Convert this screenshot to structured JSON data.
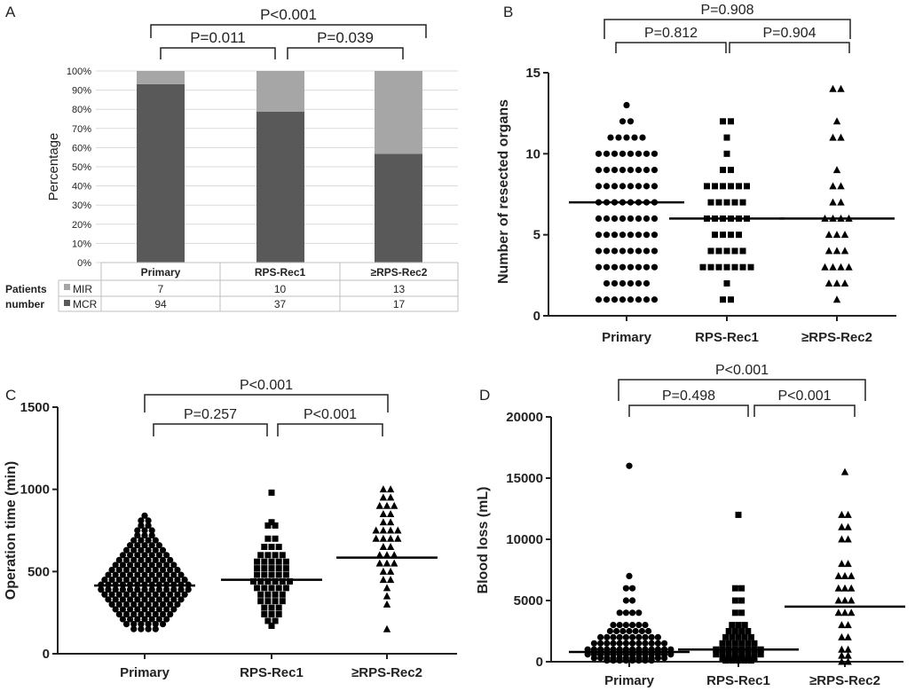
{
  "panels": {
    "A": {
      "letter": "A",
      "chart_type": "stacked-bar",
      "ylabel": "Percentage",
      "yticks": [
        "0%",
        "10%",
        "20%",
        "30%",
        "40%",
        "50%",
        "60%",
        "70%",
        "80%",
        "90%",
        "100%"
      ],
      "categories": [
        "Primary",
        "RPS-Rec1",
        "≥RPS-Rec2"
      ],
      "row_header": [
        "Patients",
        "number"
      ],
      "legend": [
        {
          "key": "MIR",
          "color": "#a6a6a6"
        },
        {
          "key": "MCR",
          "color": "#595959"
        }
      ],
      "counts": {
        "MIR": [
          7,
          10,
          13
        ],
        "MCR": [
          94,
          37,
          17
        ]
      },
      "stats": {
        "pair12": "P=0.011",
        "pair23": "P=0.039",
        "overall": "P<0.001"
      }
    },
    "B": {
      "letter": "B",
      "ylabel": "Number of resected organs",
      "categories": [
        "Primary",
        "RPS-Rec1",
        "≥RPS-Rec2"
      ],
      "yticks": [
        "0",
        "5",
        "10",
        "15"
      ],
      "stats": {
        "pair12": "P=0.812",
        "pair23": "P=0.904",
        "overall": "P=0.908"
      }
    },
    "C": {
      "letter": "C",
      "ylabel": "Operation time (min)",
      "categories": [
        "Primary",
        "RPS-Rec1",
        "≥RPS-Rec2"
      ],
      "yticks": [
        "0",
        "500",
        "1000",
        "1500"
      ],
      "stats": {
        "pair12": "P=0.257",
        "pair23": "P<0.001",
        "overall": "P<0.001"
      }
    },
    "D": {
      "letter": "D",
      "ylabel": "Blood loss (mL)",
      "categories": [
        "Primary",
        "RPS-Rec1",
        "≥RPS-Rec2"
      ],
      "yticks": [
        "0",
        "5000",
        "10000",
        "15000",
        "20000"
      ],
      "stats": {
        "pair12": "P=0.498",
        "pair23": "P<0.001",
        "overall": "P<0.001"
      }
    }
  },
  "chart_data": [
    {
      "panel": "A",
      "type": "bar",
      "stacked": true,
      "categories": [
        "Primary",
        "RPS-Rec1",
        "≥RPS-Rec2"
      ],
      "series": [
        {
          "name": "MCR",
          "values": [
            93.1,
            78.7,
            56.7
          ],
          "color": "#595959"
        },
        {
          "name": "MIR",
          "values": [
            6.9,
            21.3,
            43.3
          ],
          "color": "#a6a6a6"
        }
      ],
      "ylim": [
        0,
        100
      ],
      "ylabel": "Percentage",
      "xlabel": ""
    },
    {
      "panel": "B",
      "type": "scatter",
      "categories": [
        "Primary",
        "RPS-Rec1",
        "≥RPS-Rec2"
      ],
      "markers": [
        "circle",
        "square",
        "triangle"
      ],
      "ylim": [
        0,
        15
      ],
      "ylabel": "Number of resected organs",
      "medians": [
        7,
        6,
        6
      ],
      "series": [
        {
          "name": "Primary",
          "groups": [
            [
              13,
              1
            ],
            [
              12,
              2
            ],
            [
              11,
              5
            ],
            [
              10,
              8
            ],
            [
              9,
              8
            ],
            [
              8,
              8
            ],
            [
              7,
              8
            ],
            [
              6,
              8
            ],
            [
              5,
              8
            ],
            [
              4,
              8
            ],
            [
              3,
              8
            ],
            [
              2,
              6
            ],
            [
              1,
              8
            ]
          ]
        },
        {
          "name": "RPS-Rec1",
          "groups": [
            [
              12,
              2
            ],
            [
              11,
              1
            ],
            [
              10,
              1
            ],
            [
              9,
              2
            ],
            [
              8,
              6
            ],
            [
              7,
              5
            ],
            [
              6,
              6
            ],
            [
              5,
              4
            ],
            [
              4,
              5
            ],
            [
              3,
              7
            ],
            [
              2,
              1
            ],
            [
              1,
              2
            ]
          ]
        },
        {
          "name": "≥RPS-Rec2",
          "groups": [
            [
              14,
              2
            ],
            [
              12,
              1
            ],
            [
              11,
              2
            ],
            [
              9,
              1
            ],
            [
              8,
              2
            ],
            [
              7,
              2
            ],
            [
              6,
              4
            ],
            [
              5,
              3
            ],
            [
              4,
              3
            ],
            [
              3,
              4
            ],
            [
              2,
              3
            ],
            [
              1,
              1
            ]
          ]
        }
      ]
    },
    {
      "panel": "C",
      "type": "scatter",
      "categories": [
        "Primary",
        "RPS-Rec1",
        "≥RPS-Rec2"
      ],
      "markers": [
        "circle",
        "square",
        "triangle"
      ],
      "ylim": [
        0,
        1500
      ],
      "ylabel": "Operation time (min)",
      "medians": [
        415,
        450,
        585
      ],
      "series": [
        {
          "name": "Primary",
          "groups": [
            [
              840,
              1
            ],
            [
              810,
              2
            ],
            [
              780,
              2
            ],
            [
              750,
              3
            ],
            [
              720,
              3
            ],
            [
              690,
              4
            ],
            [
              660,
              5
            ],
            [
              630,
              6
            ],
            [
              600,
              7
            ],
            [
              570,
              8
            ],
            [
              540,
              9
            ],
            [
              510,
              10
            ],
            [
              480,
              11
            ],
            [
              450,
              12
            ],
            [
              420,
              13
            ],
            [
              390,
              13
            ],
            [
              360,
              12
            ],
            [
              330,
              11
            ],
            [
              300,
              10
            ],
            [
              270,
              9
            ],
            [
              240,
              8
            ],
            [
              210,
              7
            ],
            [
              180,
              6
            ],
            [
              150,
              4
            ]
          ]
        },
        {
          "name": "RPS-Rec1",
          "groups": [
            [
              980,
              1
            ],
            [
              800,
              1
            ],
            [
              780,
              2
            ],
            [
              700,
              2
            ],
            [
              650,
              3
            ],
            [
              600,
              4
            ],
            [
              560,
              5
            ],
            [
              520,
              5
            ],
            [
              480,
              5
            ],
            [
              440,
              6
            ],
            [
              400,
              5
            ],
            [
              360,
              4
            ],
            [
              320,
              4
            ],
            [
              280,
              3
            ],
            [
              240,
              3
            ],
            [
              200,
              2
            ],
            [
              170,
              1
            ]
          ]
        },
        {
          "name": "≥RPS-Rec2",
          "groups": [
            [
              1000,
              2
            ],
            [
              950,
              2
            ],
            [
              900,
              3
            ],
            [
              850,
              2
            ],
            [
              800,
              2
            ],
            [
              750,
              4
            ],
            [
              700,
              4
            ],
            [
              650,
              2
            ],
            [
              600,
              3
            ],
            [
              550,
              3
            ],
            [
              500,
              2
            ],
            [
              450,
              2
            ],
            [
              400,
              1
            ],
            [
              350,
              1
            ],
            [
              300,
              1
            ],
            [
              150,
              1
            ]
          ]
        }
      ]
    },
    {
      "panel": "D",
      "type": "scatter",
      "categories": [
        "Primary",
        "RPS-Rec1",
        "≥RPS-Rec2"
      ],
      "markers": [
        "circle",
        "square",
        "triangle"
      ],
      "ylim": [
        0,
        20000
      ],
      "ylabel": "Blood loss (mL)",
      "medians": [
        800,
        1000,
        4500
      ],
      "series": [
        {
          "name": "Primary",
          "groups": [
            [
              16000,
              1
            ],
            [
              7000,
              1
            ],
            [
              6000,
              2
            ],
            [
              5000,
              2
            ],
            [
              4000,
              4
            ],
            [
              3000,
              6
            ],
            [
              2500,
              7
            ],
            [
              2000,
              10
            ],
            [
              1500,
              12
            ],
            [
              1000,
              14
            ],
            [
              600,
              14
            ],
            [
              300,
              12
            ],
            [
              100,
              8
            ]
          ]
        },
        {
          "name": "RPS-Rec1",
          "groups": [
            [
              12000,
              1
            ],
            [
              6000,
              2
            ],
            [
              5000,
              2
            ],
            [
              4000,
              2
            ],
            [
              3000,
              3
            ],
            [
              2500,
              4
            ],
            [
              2000,
              5
            ],
            [
              1500,
              6
            ],
            [
              1000,
              8
            ],
            [
              600,
              8
            ],
            [
              300,
              6
            ],
            [
              100,
              5
            ]
          ]
        },
        {
          "name": "≥RPS-Rec2",
          "groups": [
            [
              15500,
              1
            ],
            [
              12000,
              2
            ],
            [
              11000,
              2
            ],
            [
              10000,
              2
            ],
            [
              8000,
              2
            ],
            [
              7000,
              3
            ],
            [
              6000,
              3
            ],
            [
              5000,
              3
            ],
            [
              4000,
              3
            ],
            [
              3000,
              2
            ],
            [
              2000,
              2
            ],
            [
              1000,
              2
            ],
            [
              500,
              2
            ],
            [
              0,
              2
            ]
          ]
        }
      ]
    }
  ]
}
